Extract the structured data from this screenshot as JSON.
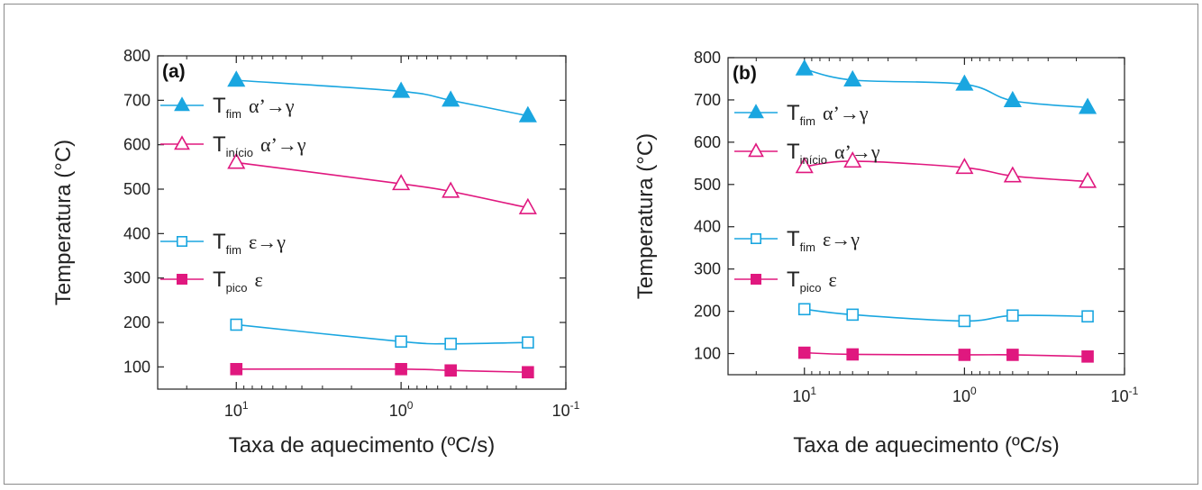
{
  "chart_data": [
    {
      "type": "line",
      "panel_label": "(a)",
      "xlabel": "Taxa de aquecimento (ºC/s)",
      "ylabel": "Temperatura (°C)",
      "x_scale": "log",
      "x_reversed": true,
      "xlim": [
        30,
        0.1
      ],
      "ylim": [
        50,
        800
      ],
      "yticks": [
        "100",
        "200",
        "300",
        "400",
        "500",
        "600",
        "700",
        "800"
      ],
      "xticks": [
        {
          "base": "10",
          "exp": "1",
          "value": 10
        },
        {
          "base": "10",
          "exp": "0",
          "value": 1
        },
        {
          "base": "10",
          "exp": "-1",
          "value": 0.1
        }
      ],
      "x": [
        10,
        1,
        0.5,
        0.17
      ],
      "series": [
        {
          "name": "T_fim α’→γ",
          "sub": "fim",
          "rx": "α’→γ",
          "marker": "triangle",
          "filled": true,
          "color": "#1aa6e0",
          "values": [
            745,
            720,
            700,
            665
          ]
        },
        {
          "name": "T_início α’→γ",
          "sub": "início",
          "rx": "α’→γ",
          "marker": "triangle",
          "filled": false,
          "color": "#e0187f",
          "values": [
            560,
            512,
            495,
            458
          ]
        },
        {
          "name": "T_fim ε→γ",
          "sub": "fim",
          "rx": "ε→γ",
          "marker": "square",
          "filled": false,
          "color": "#1aa6e0",
          "values": [
            195,
            157,
            152,
            155
          ]
        },
        {
          "name": "T_pico ε",
          "sub": "pico",
          "rx": "ε",
          "marker": "square",
          "filled": true,
          "color": "#e0187f",
          "values": [
            95,
            95,
            92,
            88
          ]
        }
      ]
    },
    {
      "type": "line",
      "panel_label": "(b)",
      "xlabel": "Taxa de aquecimento (ºC/s)",
      "ylabel": "Temperatura (°C)",
      "x_scale": "log",
      "x_reversed": true,
      "xlim": [
        30,
        0.1
      ],
      "ylim": [
        50,
        800
      ],
      "yticks": [
        "100",
        "200",
        "300",
        "400",
        "500",
        "600",
        "700",
        "800"
      ],
      "xticks": [
        {
          "base": "10",
          "exp": "1",
          "value": 10
        },
        {
          "base": "10",
          "exp": "0",
          "value": 1
        },
        {
          "base": "10",
          "exp": "-1",
          "value": 0.1
        }
      ],
      "x": [
        10,
        5,
        1,
        0.5,
        0.17
      ],
      "series": [
        {
          "name": "T_fim α’→γ",
          "sub": "fim",
          "rx": "α’→γ",
          "marker": "triangle",
          "filled": true,
          "color": "#1aa6e0",
          "values": [
            773,
            747,
            737,
            698,
            682
          ]
        },
        {
          "name": "T_início α’→γ",
          "sub": "início",
          "rx": "α’→γ",
          "marker": "triangle",
          "filled": false,
          "color": "#e0187f",
          "values": [
            542,
            555,
            540,
            520,
            507
          ]
        },
        {
          "name": "T_fim ε→γ",
          "sub": "fim",
          "rx": "ε→γ",
          "marker": "square",
          "filled": false,
          "color": "#1aa6e0",
          "values": [
            205,
            192,
            177,
            190,
            188
          ]
        },
        {
          "name": "T_pico ε",
          "sub": "pico",
          "rx": "ε",
          "marker": "square",
          "filled": true,
          "color": "#e0187f",
          "values": [
            102,
            98,
            97,
            97,
            93
          ]
        }
      ]
    }
  ]
}
